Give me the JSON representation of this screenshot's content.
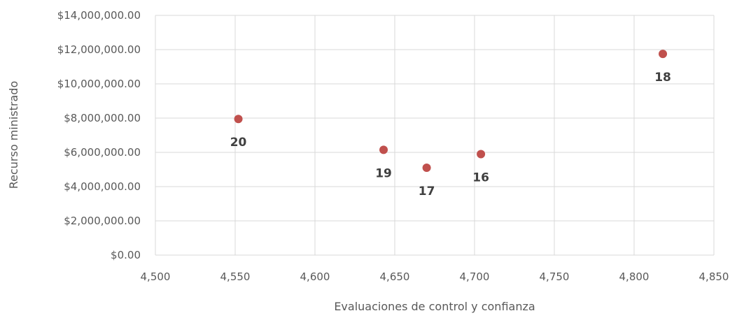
{
  "chart_data": {
    "type": "scatter",
    "title": "",
    "xlabel": "Evaluaciones de control y confianza",
    "ylabel": "Recurso ministrado",
    "xlim": [
      4500,
      4850
    ],
    "ylim": [
      0,
      14000000
    ],
    "x_ticks": [
      "4,500",
      "4,550",
      "4,600",
      "4,650",
      "4,700",
      "4,750",
      "4,800",
      "4,850"
    ],
    "y_ticks": [
      "$0.00",
      "$2,000,000.00",
      "$4,000,000.00",
      "$6,000,000.00",
      "$8,000,000.00",
      "$10,000,000.00",
      "$12,000,000.00",
      "$14,000,000.00"
    ],
    "grid": true,
    "marker_color": "#c0504d",
    "points": [
      {
        "x": 4552,
        "y": 7950000,
        "label": "20"
      },
      {
        "x": 4643,
        "y": 6150000,
        "label": "19"
      },
      {
        "x": 4670,
        "y": 5100000,
        "label": "17"
      },
      {
        "x": 4704,
        "y": 5900000,
        "label": "16"
      },
      {
        "x": 4818,
        "y": 11750000,
        "label": "18"
      }
    ]
  }
}
